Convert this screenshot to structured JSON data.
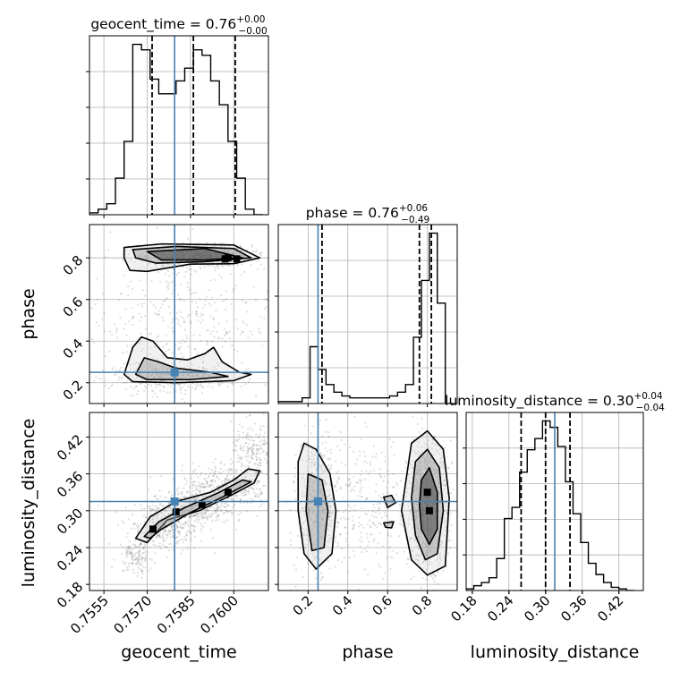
{
  "figure": {
    "params": [
      "geocent_time",
      "phase",
      "luminosity_distance"
    ],
    "truth_color": "#4682b4"
  },
  "chart_data": [
    {
      "type": "histogram",
      "panel": "geocent_time-marginal",
      "title": "geocent_time = 0.76",
      "title_main": "geocent_time = 0.76",
      "title_sup": "+0.00",
      "title_sub": "−0.00",
      "xlim": [
        0.755,
        0.7612
      ],
      "bin_edges": [
        0.755,
        0.7553,
        0.7556,
        0.7559,
        0.7562,
        0.7565,
        0.7568,
        0.7571,
        0.7574,
        0.7577,
        0.758,
        0.7583,
        0.7586,
        0.7589,
        0.7592,
        0.7595,
        0.7598,
        0.7601,
        0.7604,
        0.7607,
        0.761
      ],
      "counts": [
        1,
        3,
        6,
        20,
        40,
        93,
        90,
        74,
        66,
        66,
        73,
        80,
        90,
        87,
        73,
        60,
        40,
        20,
        3,
        0
      ],
      "quantiles": [
        0.75717,
        0.7586,
        0.76005
      ],
      "truth": 0.75795
    },
    {
      "type": "histogram",
      "panel": "phase-marginal",
      "title": "phase = 0.76",
      "title_main": "phase = 0.76",
      "title_sup": "+0.06",
      "title_sub": "−0.49",
      "xlim": [
        0.05,
        0.95
      ],
      "bin_edges": [
        0.05,
        0.09,
        0.13,
        0.17,
        0.21,
        0.25,
        0.29,
        0.33,
        0.37,
        0.41,
        0.45,
        0.49,
        0.53,
        0.57,
        0.61,
        0.65,
        0.69,
        0.73,
        0.77,
        0.81,
        0.85,
        0.89,
        0.93
      ],
      "counts": [
        1,
        1,
        1,
        3,
        30,
        18,
        10,
        6,
        4,
        3,
        3,
        3,
        3,
        3,
        4,
        6,
        10,
        35,
        65,
        90,
        53,
        0
      ],
      "quantiles": [
        0.27,
        0.76,
        0.82
      ],
      "truth": 0.25
    },
    {
      "type": "histogram",
      "panel": "luminosity_distance-marginal",
      "title": "luminosity_distance = 0.30",
      "title_main": "luminosity_distance = 0.30",
      "title_sup": "+0.04",
      "title_sub": "−0.04",
      "xlim": [
        0.17,
        0.46
      ],
      "bin_edges": [
        0.17,
        0.1825,
        0.195,
        0.2075,
        0.22,
        0.2325,
        0.245,
        0.2575,
        0.27,
        0.2825,
        0.295,
        0.3075,
        0.32,
        0.3325,
        0.345,
        0.3575,
        0.37,
        0.3825,
        0.395,
        0.4075,
        0.42,
        0.4325,
        0.445
      ],
      "counts": [
        1,
        3,
        5,
        8,
        20,
        45,
        52,
        74,
        88,
        95,
        106,
        102,
        90,
        68,
        48,
        30,
        17,
        10,
        5,
        2,
        1,
        0
      ],
      "quantiles": [
        0.26,
        0.3,
        0.34
      ],
      "truth": 0.315
    },
    {
      "type": "scatter",
      "panel": "phase-vs-geocent_time",
      "xlim": [
        0.755,
        0.7612
      ],
      "ylim": [
        0.1,
        0.96
      ],
      "truth": [
        0.75795,
        0.25
      ],
      "clusters": [
        {
          "cx": 0.7588,
          "cy": 0.81,
          "sx": 0.0009,
          "sy": 0.025,
          "n": 900
        },
        {
          "cx": 0.7578,
          "cy": 0.225,
          "sx": 0.001,
          "sy": 0.03,
          "n": 420
        },
        {
          "cx": 0.7581,
          "cy": 0.5,
          "sx": 0.0016,
          "sy": 0.17,
          "n": 380
        }
      ],
      "contours": [
        {
          "level": 3,
          "points": [
            [
              0.7562,
              0.85
            ],
            [
              0.7575,
              0.867
            ],
            [
              0.76,
              0.862
            ],
            [
              0.7609,
              0.8
            ],
            [
              0.76,
              0.772
            ],
            [
              0.7585,
              0.77
            ],
            [
              0.757,
              0.735
            ],
            [
              0.7564,
              0.74
            ],
            [
              0.7562,
              0.8
            ]
          ]
        },
        {
          "level": 2,
          "points": [
            [
              0.7565,
              0.84
            ],
            [
              0.758,
              0.855
            ],
            [
              0.76,
              0.845
            ],
            [
              0.7606,
              0.8
            ],
            [
              0.759,
              0.782
            ],
            [
              0.7573,
              0.775
            ],
            [
              0.7566,
              0.8
            ]
          ]
        },
        {
          "level": 1,
          "points": [
            [
              0.757,
              0.83
            ],
            [
              0.759,
              0.845
            ],
            [
              0.7603,
              0.8
            ],
            [
              0.759,
              0.79
            ],
            [
              0.7575,
              0.79
            ]
          ]
        },
        {
          "level": 3,
          "points": [
            [
              0.7562,
              0.24
            ],
            [
              0.7565,
              0.37
            ],
            [
              0.7568,
              0.42
            ],
            [
              0.7572,
              0.4
            ],
            [
              0.7577,
              0.32
            ],
            [
              0.7584,
              0.31
            ],
            [
              0.759,
              0.34
            ],
            [
              0.7593,
              0.37
            ],
            [
              0.7596,
              0.3
            ],
            [
              0.7602,
              0.25
            ],
            [
              0.7606,
              0.24
            ],
            [
              0.76,
              0.21
            ],
            [
              0.758,
              0.2
            ],
            [
              0.7565,
              0.205
            ]
          ]
        },
        {
          "level": 2,
          "points": [
            [
              0.7566,
              0.24
            ],
            [
              0.7569,
              0.32
            ],
            [
              0.7574,
              0.3
            ],
            [
              0.758,
              0.27
            ],
            [
              0.7592,
              0.25
            ],
            [
              0.7598,
              0.23
            ],
            [
              0.7585,
              0.215
            ],
            [
              0.757,
              0.215
            ]
          ]
        }
      ],
      "dense_points": [
        [
          0.7597,
          0.795
        ],
        [
          0.7601,
          0.795
        ],
        [
          0.7598,
          0.8
        ]
      ]
    },
    {
      "type": "scatter",
      "panel": "luminosity_distance-vs-geocent_time",
      "xlim": [
        0.755,
        0.7612
      ],
      "ylim": [
        0.17,
        0.46
      ],
      "truth": [
        0.75795,
        0.315
      ],
      "clusters": [
        {
          "cx": 0.7575,
          "cy": 0.27,
          "sx": 0.00065,
          "sy": 0.018,
          "n": 300
        },
        {
          "cx": 0.7585,
          "cy": 0.305,
          "sx": 0.0007,
          "sy": 0.014,
          "n": 350
        },
        {
          "cx": 0.7597,
          "cy": 0.34,
          "sx": 0.00075,
          "sy": 0.018,
          "n": 350
        },
        {
          "cx": 0.7607,
          "cy": 0.39,
          "sx": 0.0004,
          "sy": 0.025,
          "n": 200
        },
        {
          "cx": 0.7566,
          "cy": 0.225,
          "sx": 0.0003,
          "sy": 0.015,
          "n": 120
        }
      ],
      "contours": [
        {
          "level": 3,
          "points": [
            [
              0.7566,
              0.255
            ],
            [
              0.7571,
              0.29
            ],
            [
              0.758,
              0.315
            ],
            [
              0.7592,
              0.33
            ],
            [
              0.76,
              0.35
            ],
            [
              0.7605,
              0.368
            ],
            [
              0.7609,
              0.365
            ],
            [
              0.7607,
              0.345
            ],
            [
              0.7599,
              0.325
            ],
            [
              0.7588,
              0.3
            ],
            [
              0.7577,
              0.285
            ],
            [
              0.757,
              0.248
            ]
          ]
        },
        {
          "level": 2,
          "points": [
            [
              0.7569,
              0.258
            ],
            [
              0.7574,
              0.282
            ],
            [
              0.7583,
              0.305
            ],
            [
              0.7595,
              0.33
            ],
            [
              0.7603,
              0.35
            ],
            [
              0.7606,
              0.347
            ],
            [
              0.7596,
              0.322
            ],
            [
              0.7585,
              0.297
            ],
            [
              0.7575,
              0.27
            ],
            [
              0.7571,
              0.255
            ]
          ]
        }
      ],
      "dense_points": [
        [
          0.7572,
          0.27
        ],
        [
          0.758,
          0.298
        ],
        [
          0.7589,
          0.31
        ],
        [
          0.7598,
          0.33
        ]
      ]
    },
    {
      "type": "scatter",
      "panel": "luminosity_distance-vs-phase",
      "xlim": [
        0.05,
        0.95
      ],
      "ylim": [
        0.17,
        0.46
      ],
      "truth": [
        0.25,
        0.315
      ],
      "clusters": [
        {
          "cx": 0.25,
          "cy": 0.31,
          "sx": 0.05,
          "sy": 0.05,
          "n": 450
        },
        {
          "cx": 0.8,
          "cy": 0.31,
          "sx": 0.05,
          "sy": 0.05,
          "n": 800
        },
        {
          "cx": 0.52,
          "cy": 0.31,
          "sx": 0.16,
          "sy": 0.06,
          "n": 300
        }
      ],
      "contours": [
        {
          "level": 3,
          "points": [
            [
              0.18,
              0.41
            ],
            [
              0.24,
              0.4
            ],
            [
              0.31,
              0.36
            ],
            [
              0.34,
              0.3
            ],
            [
              0.32,
              0.23
            ],
            [
              0.24,
              0.205
            ],
            [
              0.18,
              0.23
            ],
            [
              0.15,
              0.3
            ],
            [
              0.15,
              0.38
            ]
          ]
        },
        {
          "level": 2,
          "points": [
            [
              0.2,
              0.36
            ],
            [
              0.27,
              0.35
            ],
            [
              0.3,
              0.3
            ],
            [
              0.28,
              0.24
            ],
            [
              0.22,
              0.235
            ],
            [
              0.19,
              0.3
            ]
          ]
        },
        {
          "level": 3,
          "points": [
            [
              0.72,
              0.41
            ],
            [
              0.8,
              0.43
            ],
            [
              0.88,
              0.4
            ],
            [
              0.91,
              0.32
            ],
            [
              0.89,
              0.21
            ],
            [
              0.8,
              0.195
            ],
            [
              0.72,
              0.22
            ],
            [
              0.67,
              0.3
            ]
          ]
        },
        {
          "level": 2,
          "points": [
            [
              0.74,
              0.38
            ],
            [
              0.8,
              0.4
            ],
            [
              0.86,
              0.37
            ],
            [
              0.88,
              0.3
            ],
            [
              0.85,
              0.23
            ],
            [
              0.79,
              0.22
            ],
            [
              0.74,
              0.26
            ],
            [
              0.72,
              0.32
            ]
          ]
        },
        {
          "level": 1,
          "points": [
            [
              0.77,
              0.35
            ],
            [
              0.81,
              0.37
            ],
            [
              0.85,
              0.33
            ],
            [
              0.85,
              0.27
            ],
            [
              0.81,
              0.245
            ],
            [
              0.77,
              0.27
            ],
            [
              0.76,
              0.31
            ]
          ]
        },
        {
          "level": 2,
          "points": [
            [
              0.58,
              0.322
            ],
            [
              0.62,
              0.325
            ],
            [
              0.64,
              0.313
            ],
            [
              0.6,
              0.305
            ]
          ]
        },
        {
          "level": 2,
          "points": [
            [
              0.58,
              0.28
            ],
            [
              0.63,
              0.282
            ],
            [
              0.62,
              0.272
            ],
            [
              0.59,
              0.273
            ]
          ]
        }
      ],
      "dense_points": [
        [
          0.8,
          0.33
        ],
        [
          0.81,
          0.3
        ]
      ]
    }
  ],
  "axes": {
    "geocent_time": {
      "label": "geocent_time",
      "ticks": [
        0.7555,
        0.757,
        0.7585,
        0.76
      ],
      "tick_labels": [
        "0.7555",
        "0.7570",
        "0.7585",
        "0.7600"
      ]
    },
    "phase_x": {
      "label": "phase",
      "ticks": [
        0.2,
        0.4,
        0.6,
        0.8
      ],
      "tick_labels": [
        "0.2",
        "0.4",
        "0.6",
        "0.8"
      ]
    },
    "phase_y": {
      "label": "phase",
      "ticks": [
        0.2,
        0.4,
        0.6,
        0.8
      ],
      "tick_labels": [
        "0.2",
        "0.4",
        "0.6",
        "0.8"
      ]
    },
    "luminosity_distance": {
      "label": "luminosity_distance",
      "ticks": [
        0.18,
        0.24,
        0.3,
        0.36,
        0.42
      ],
      "tick_labels": [
        "0.18",
        "0.24",
        "0.30",
        "0.36",
        "0.42"
      ]
    }
  }
}
